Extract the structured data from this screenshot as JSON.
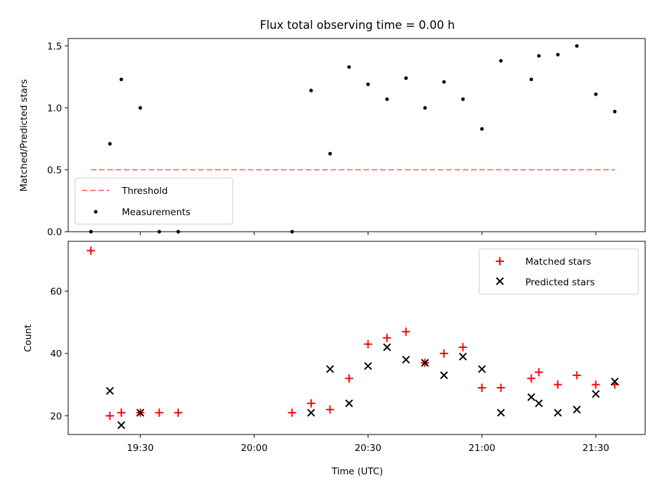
{
  "chart_data": [
    {
      "type": "scatter",
      "title": "Flux total observing time = 0.00 h",
      "xlabel": "",
      "ylabel": "Matched/Predicted stars",
      "x_unit": "time of day (UTC)",
      "xlim": [
        "19:11",
        "21:43"
      ],
      "ylim": [
        0,
        1.56
      ],
      "yticks": [
        0.0,
        0.5,
        1.0,
        1.5
      ],
      "ytick_labels": [
        "0.0",
        "0.5",
        "1.0",
        "1.5"
      ],
      "xticks": [
        "19:30",
        "20:00",
        "20:30",
        "21:00",
        "21:30"
      ],
      "show_xtick_labels": false,
      "grid": false,
      "legend_position": "lower-left",
      "series": [
        {
          "name": "Threshold",
          "kind": "line",
          "style": "dashed",
          "color": "#ff7f7f",
          "x": [
            "19:17",
            "21:35"
          ],
          "y": [
            0.5,
            0.5
          ]
        },
        {
          "name": "Measurements",
          "kind": "points",
          "color": "#000000",
          "x": [
            "19:17",
            "19:22",
            "19:25",
            "19:30",
            "19:35",
            "19:40",
            "20:10",
            "20:15",
            "20:20",
            "20:25",
            "20:30",
            "20:35",
            "20:40",
            "20:45",
            "20:50",
            "20:55",
            "21:00",
            "21:05",
            "21:13",
            "21:15",
            "21:20",
            "21:25",
            "21:30",
            "21:35"
          ],
          "y": [
            0.0,
            0.71,
            1.23,
            1.0,
            0.0,
            0.0,
            0.0,
            1.14,
            0.63,
            1.33,
            1.19,
            1.07,
            1.24,
            1.0,
            1.21,
            1.07,
            0.83,
            1.38,
            1.23,
            1.42,
            1.43,
            1.5,
            1.11,
            0.97
          ]
        }
      ]
    },
    {
      "type": "scatter",
      "title": "",
      "xlabel": "Time (UTC)",
      "ylabel": "Count",
      "x_unit": "time of day (UTC)",
      "xlim": [
        "19:11",
        "21:43"
      ],
      "ylim": [
        14,
        76
      ],
      "yticks": [
        20,
        40,
        60
      ],
      "ytick_labels": [
        "20",
        "40",
        "60"
      ],
      "xticks": [
        "19:30",
        "20:00",
        "20:30",
        "21:00",
        "21:30"
      ],
      "xtick_labels": [
        "19:30",
        "20:00",
        "20:30",
        "21:00",
        "21:30"
      ],
      "grid": false,
      "legend_position": "top-right",
      "series": [
        {
          "name": "Matched stars",
          "marker": "plus",
          "color": "#ff0000",
          "x": [
            "19:17",
            "19:22",
            "19:25",
            "19:30",
            "19:35",
            "19:40",
            "20:10",
            "20:15",
            "20:20",
            "20:25",
            "20:30",
            "20:35",
            "20:40",
            "20:45",
            "20:50",
            "20:55",
            "21:00",
            "21:05",
            "21:13",
            "21:15",
            "21:20",
            "21:25",
            "21:30",
            "21:35"
          ],
          "y": [
            73,
            20,
            21,
            21,
            21,
            21,
            21,
            24,
            22,
            32,
            43,
            45,
            47,
            37,
            40,
            42,
            29,
            29,
            32,
            34,
            30,
            33,
            30,
            30
          ]
        },
        {
          "name": "Predicted stars",
          "marker": "x",
          "color": "#000000",
          "x": [
            "19:22",
            "19:25",
            "19:30",
            "20:15",
            "20:20",
            "20:25",
            "20:30",
            "20:35",
            "20:40",
            "20:45",
            "20:50",
            "20:55",
            "21:00",
            "21:05",
            "21:13",
            "21:15",
            "21:20",
            "21:25",
            "21:30",
            "21:35"
          ],
          "y": [
            28,
            17,
            21,
            21,
            35,
            24,
            36,
            42,
            38,
            37,
            33,
            39,
            35,
            21,
            26,
            24,
            21,
            22,
            27,
            31
          ]
        }
      ]
    }
  ]
}
